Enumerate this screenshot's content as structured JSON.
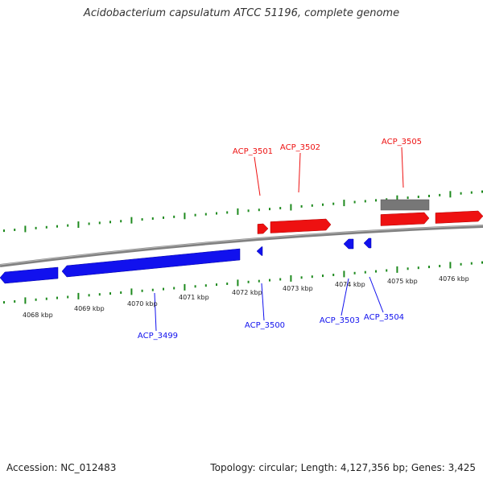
{
  "title": "Acidobacterium capsulatum ATCC 51196, complete genome",
  "accession": "Accession: NC_012483",
  "summary": "Topology: circular; Length: 4,127,356 bp; Genes: 3,425",
  "colors": {
    "forward": "#ee1111",
    "reverse": "#1111ee",
    "other": "#777777",
    "backbone": "#888888",
    "ticks": "#1e8a1e"
  },
  "ruler": [
    {
      "label": "4068 kbp"
    },
    {
      "label": "4069 kbp"
    },
    {
      "label": "4070 kbp"
    },
    {
      "label": "4071 kbp"
    },
    {
      "label": "4072 kbp"
    },
    {
      "label": "4073 kbp"
    },
    {
      "label": "4074 kbp"
    },
    {
      "label": "4075 kbp"
    },
    {
      "label": "4076 kbp"
    }
  ],
  "gene_labels": {
    "forward": [
      "ACP_3501",
      "ACP_3502",
      "ACP_3505"
    ],
    "reverse": [
      "ACP_3499",
      "ACP_3500",
      "ACP_3503",
      "ACP_3504"
    ]
  }
}
